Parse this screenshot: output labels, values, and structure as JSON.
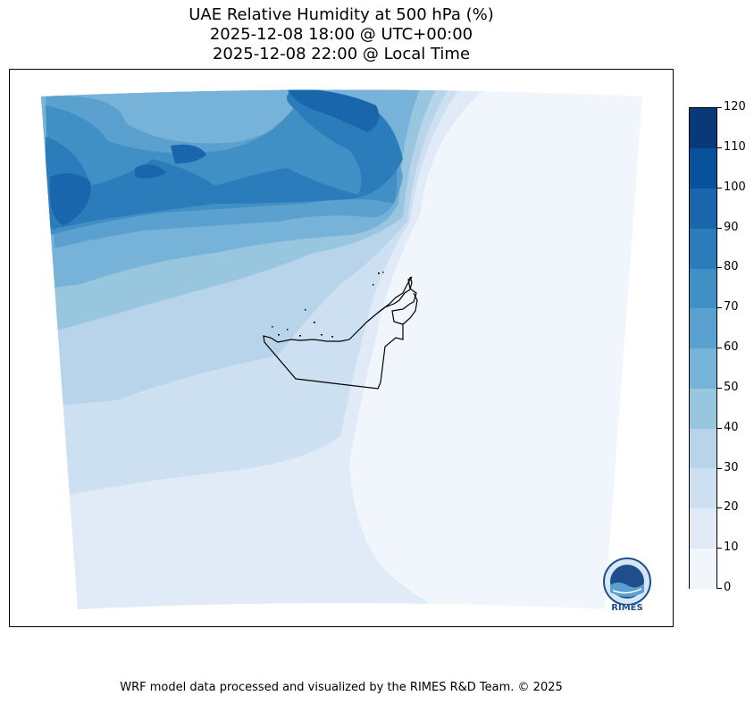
{
  "title": {
    "line1": "UAE Relative Humidity at 500 hPa (%)",
    "line2": "2025-12-08 18:00 @ UTC+00:00",
    "line3": "2025-12-08 22:00 @ Local Time"
  },
  "colorbar": {
    "levels": [
      "0",
      "10",
      "20",
      "30",
      "40",
      "50",
      "60",
      "70",
      "80",
      "90",
      "100",
      "110",
      "120"
    ],
    "colors": [
      "#f0f6fc",
      "#e0ebf7",
      "#cde0f1",
      "#b7d4ea",
      "#98c6df",
      "#77b2d9",
      "#5aa1d0",
      "#4090c5",
      "#2b7cbb",
      "#1966ad",
      "#08519c",
      "#083a7a"
    ]
  },
  "logo": {
    "text": "RIMES"
  },
  "footer": "WRF model data processed and visualized by the RIMES R&D Team. © 2025"
}
